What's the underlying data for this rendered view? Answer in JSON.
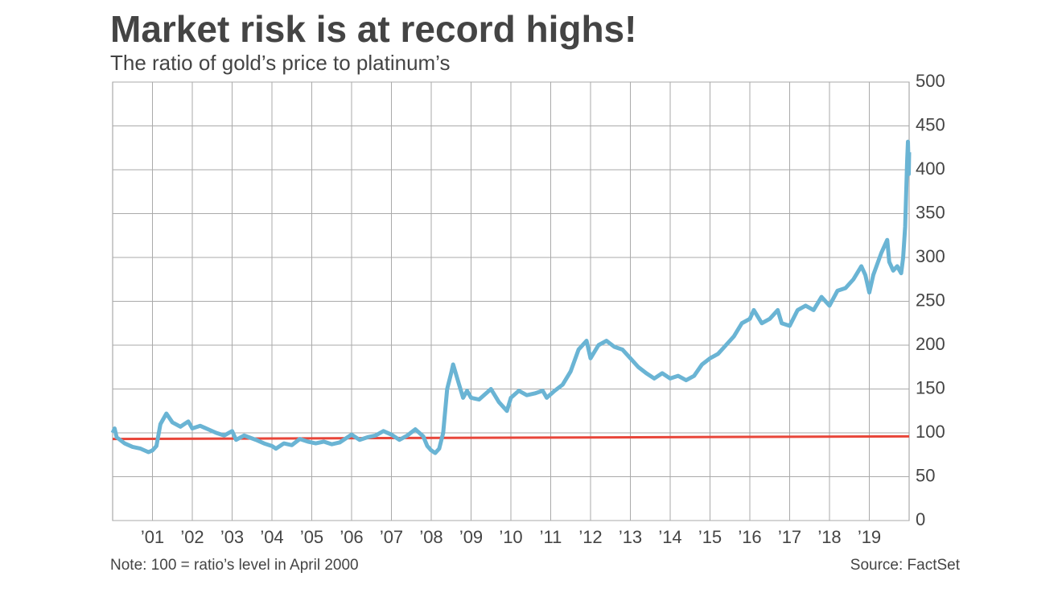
{
  "chart_data": {
    "type": "line",
    "title": "Market risk is at record highs!",
    "subtitle": "The ratio of gold’s price to platinum’s",
    "note": "Note: 100 = ratio’s level in April 2000",
    "source": "Source: FactSet",
    "xlim": [
      2000,
      2020
    ],
    "ylim": [
      0,
      500
    ],
    "yticks": [
      0,
      50,
      100,
      150,
      200,
      250,
      300,
      350,
      400,
      450,
      500
    ],
    "xticks": [
      {
        "value": 2001,
        "label": "’01"
      },
      {
        "value": 2002,
        "label": "’02"
      },
      {
        "value": 2003,
        "label": "’03"
      },
      {
        "value": 2004,
        "label": "’04"
      },
      {
        "value": 2005,
        "label": "’05"
      },
      {
        "value": 2006,
        "label": "’06"
      },
      {
        "value": 2007,
        "label": "’07"
      },
      {
        "value": 2008,
        "label": "’08"
      },
      {
        "value": 2009,
        "label": "’09"
      },
      {
        "value": 2010,
        "label": "’10"
      },
      {
        "value": 2011,
        "label": "’11"
      },
      {
        "value": 2012,
        "label": "’12"
      },
      {
        "value": 2013,
        "label": "’13"
      },
      {
        "value": 2014,
        "label": "’14"
      },
      {
        "value": 2015,
        "label": "’15"
      },
      {
        "value": 2016,
        "label": "’16"
      },
      {
        "value": 2017,
        "label": "’17"
      },
      {
        "value": 2018,
        "label": "’18"
      },
      {
        "value": 2019,
        "label": "’19"
      }
    ],
    "grid": true,
    "series": [
      {
        "color": "#6ab4d4",
        "x": [
          2000.0,
          2000.05,
          2000.1,
          2000.3,
          2000.5,
          2000.7,
          2000.9,
          2001.0,
          2001.1,
          2001.2,
          2001.35,
          2001.5,
          2001.7,
          2001.9,
          2002.0,
          2002.2,
          2002.4,
          2002.6,
          2002.8,
          2003.0,
          2003.1,
          2003.3,
          2003.6,
          2003.8,
          2004.0,
          2004.1,
          2004.3,
          2004.5,
          2004.7,
          2004.9,
          2005.1,
          2005.3,
          2005.5,
          2005.7,
          2005.9,
          2006.0,
          2006.2,
          2006.4,
          2006.6,
          2006.8,
          2007.0,
          2007.2,
          2007.4,
          2007.6,
          2007.8,
          2007.9,
          2008.0,
          2008.1,
          2008.2,
          2008.3,
          2008.4,
          2008.5,
          2008.55,
          2008.7,
          2008.8,
          2008.9,
          2009.0,
          2009.2,
          2009.5,
          2009.7,
          2009.9,
          2010.0,
          2010.2,
          2010.4,
          2010.6,
          2010.8,
          2010.9,
          2011.1,
          2011.3,
          2011.5,
          2011.7,
          2011.9,
          2012.0,
          2012.2,
          2012.4,
          2012.6,
          2012.8,
          2013.0,
          2013.2,
          2013.4,
          2013.6,
          2013.8,
          2014.0,
          2014.2,
          2014.4,
          2014.6,
          2014.8,
          2015.0,
          2015.2,
          2015.4,
          2015.6,
          2015.8,
          2016.0,
          2016.1,
          2016.3,
          2016.5,
          2016.7,
          2016.8,
          2017.0,
          2017.2,
          2017.4,
          2017.6,
          2017.8,
          2018.0,
          2018.2,
          2018.4,
          2018.6,
          2018.8,
          2018.9,
          2019.0,
          2019.1,
          2019.3,
          2019.45,
          2019.5,
          2019.6,
          2019.7,
          2019.8,
          2019.85,
          2019.9,
          2019.95,
          2019.97,
          2019.99,
          2020.0
        ],
        "values": [
          100,
          105,
          95,
          88,
          84,
          82,
          78,
          80,
          85,
          110,
          122,
          112,
          107,
          113,
          105,
          108,
          104,
          100,
          97,
          102,
          92,
          97,
          92,
          88,
          85,
          82,
          88,
          86,
          93,
          90,
          88,
          90,
          87,
          89,
          95,
          98,
          92,
          95,
          97,
          102,
          98,
          92,
          97,
          104,
          96,
          85,
          80,
          77,
          82,
          100,
          150,
          168,
          178,
          155,
          140,
          148,
          140,
          138,
          150,
          135,
          125,
          140,
          148,
          143,
          145,
          148,
          140,
          148,
          155,
          170,
          195,
          205,
          185,
          200,
          205,
          198,
          195,
          185,
          175,
          168,
          162,
          168,
          162,
          165,
          160,
          165,
          178,
          185,
          190,
          200,
          210,
          225,
          230,
          240,
          225,
          230,
          240,
          225,
          222,
          240,
          245,
          240,
          255,
          245,
          262,
          265,
          275,
          290,
          280,
          260,
          280,
          305,
          320,
          295,
          285,
          290,
          282,
          300,
          335,
          410,
          432,
          395,
          420
        ]
      },
      {
        "color": "#e8463a",
        "x": [
          2000,
          2020
        ],
        "values": [
          93,
          96
        ]
      }
    ]
  }
}
